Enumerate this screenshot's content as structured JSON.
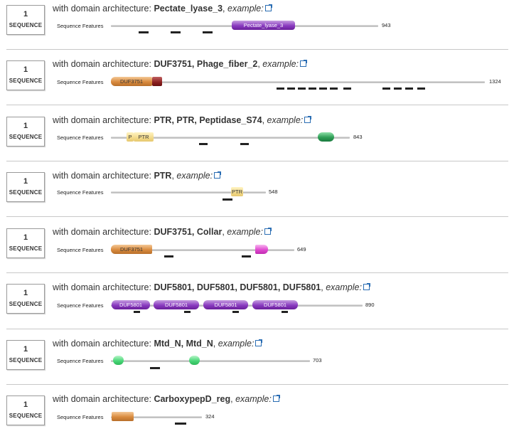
{
  "common": {
    "count": "1",
    "count_label": "SEQUENCE",
    "prefix": "with domain architecture: ",
    "example": "example:",
    "features_label": "Sequence Features"
  },
  "rows": [
    {
      "arch": "Pectate_lyase_3",
      "length": "943",
      "domains": [
        "Pectate_lyase_3"
      ]
    },
    {
      "arch": "DUF3751, Phage_fiber_2",
      "length": "1324",
      "domains": [
        "DUF3751"
      ]
    },
    {
      "arch": "PTR, PTR, Peptidase_S74",
      "length": "843",
      "domains": [
        "P",
        "PTR"
      ]
    },
    {
      "arch": "PTR",
      "length": "548",
      "domains": [
        "PTR"
      ]
    },
    {
      "arch": "DUF3751, Collar",
      "length": "649",
      "domains": [
        "DUF3751"
      ]
    },
    {
      "arch": "DUF5801, DUF5801, DUF5801, DUF5801",
      "length": "890",
      "domains": [
        "DUF5801",
        "DUF5801",
        "DUF5801",
        "DUF5801"
      ]
    },
    {
      "arch": "Mtd_N, Mtd_N",
      "length": "703",
      "domains": []
    },
    {
      "arch": "CarboxypepD_reg",
      "length": "324",
      "domains": []
    }
  ]
}
